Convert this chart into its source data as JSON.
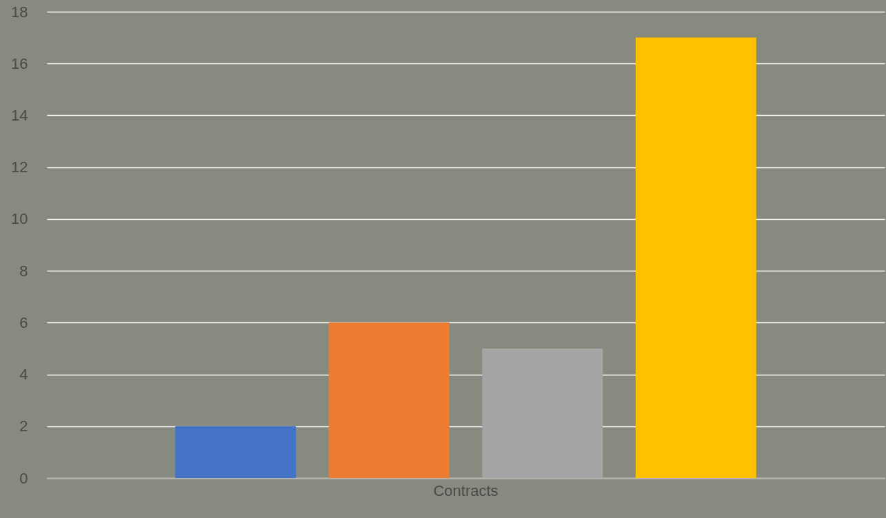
{
  "chart_data": {
    "type": "bar",
    "categories": [
      "Contracts"
    ],
    "series": [
      {
        "color": "#4472c4",
        "values": [
          2
        ]
      },
      {
        "color": "#ed7d31",
        "values": [
          6
        ]
      },
      {
        "color": "#a5a5a5",
        "values": [
          5
        ]
      },
      {
        "color": "#ffc000",
        "values": [
          17
        ]
      }
    ],
    "ylim": [
      0,
      18
    ],
    "yticks": [
      0,
      2,
      4,
      6,
      8,
      10,
      12,
      14,
      16,
      18
    ],
    "grid": "y"
  }
}
